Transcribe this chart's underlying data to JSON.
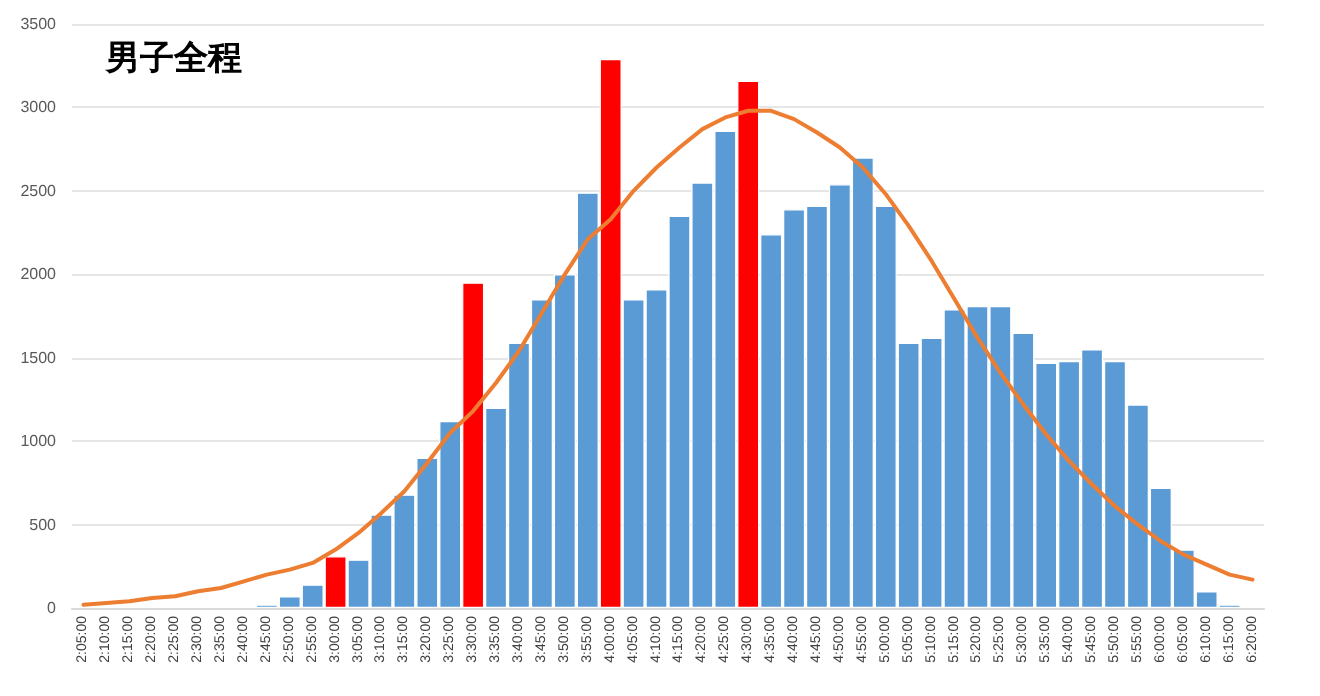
{
  "chart_data": {
    "type": "bar",
    "title": "男子全程",
    "categories": [
      "2:05:00",
      "2:10:00",
      "2:15:00",
      "2:20:00",
      "2:25:00",
      "2:30:00",
      "2:35:00",
      "2:40:00",
      "2:45:00",
      "2:50:00",
      "2:55:00",
      "3:00:00",
      "3:05:00",
      "3:10:00",
      "3:15:00",
      "3:20:00",
      "3:25:00",
      "3:30:00",
      "3:35:00",
      "3:40:00",
      "3:45:00",
      "3:50:00",
      "3:55:00",
      "4:00:00",
      "4:05:00",
      "4:10:00",
      "4:15:00",
      "4:20:00",
      "4:25:00",
      "4:30:00",
      "4:35:00",
      "4:40:00",
      "4:45:00",
      "4:50:00",
      "4:55:00",
      "5:00:00",
      "5:05:00",
      "5:10:00",
      "5:15:00",
      "5:20:00",
      "5:25:00",
      "5:30:00",
      "5:35:00",
      "5:40:00",
      "5:45:00",
      "5:50:00",
      "5:55:00",
      "6:00:00",
      "6:05:00",
      "6:10:00",
      "6:15:00",
      "6:20:00"
    ],
    "series": [
      {
        "values": [
          0,
          0,
          0,
          10,
          0,
          0,
          0,
          10,
          20,
          70,
          140,
          310,
          290,
          560,
          680,
          900,
          1120,
          1950,
          1200,
          1590,
          1850,
          2000,
          2490,
          3290,
          1850,
          1910,
          2350,
          2550,
          2860,
          3160,
          2240,
          2390,
          2410,
          2540,
          2700,
          2410,
          1590,
          1620,
          1790,
          1810,
          1810,
          1650,
          1470,
          1480,
          1550,
          1480,
          1220,
          720,
          350,
          100,
          20,
          0
        ],
        "colors": [
          "#5b9bd5",
          "#5b9bd5",
          "#5b9bd5",
          "#5b9bd5",
          "#5b9bd5",
          "#5b9bd5",
          "#5b9bd5",
          "#5b9bd5",
          "#5b9bd5",
          "#5b9bd5",
          "#5b9bd5",
          "#ff0000",
          "#5b9bd5",
          "#5b9bd5",
          "#5b9bd5",
          "#5b9bd5",
          "#5b9bd5",
          "#ff0000",
          "#5b9bd5",
          "#5b9bd5",
          "#5b9bd5",
          "#5b9bd5",
          "#5b9bd5",
          "#ff0000",
          "#5b9bd5",
          "#5b9bd5",
          "#5b9bd5",
          "#5b9bd5",
          "#5b9bd5",
          "#ff0000",
          "#5b9bd5",
          "#5b9bd5",
          "#5b9bd5",
          "#5b9bd5",
          "#5b9bd5",
          "#5b9bd5",
          "#5b9bd5",
          "#5b9bd5",
          "#5b9bd5",
          "#5b9bd5",
          "#5b9bd5",
          "#5b9bd5",
          "#5b9bd5",
          "#5b9bd5",
          "#5b9bd5",
          "#5b9bd5",
          "#5b9bd5",
          "#5b9bd5",
          "#5b9bd5",
          "#5b9bd5",
          "#5b9bd5",
          "#5b9bd5"
        ]
      },
      {
        "type": "line",
        "color": "#ed7d31",
        "values": [
          20,
          30,
          40,
          60,
          70,
          100,
          120,
          160,
          200,
          230,
          270,
          350,
          450,
          570,
          700,
          870,
          1050,
          1180,
          1350,
          1540,
          1770,
          2000,
          2210,
          2330,
          2500,
          2640,
          2760,
          2870,
          2940,
          2980,
          2980,
          2930,
          2850,
          2760,
          2640,
          2480,
          2290,
          2080,
          1850,
          1620,
          1410,
          1220,
          1040,
          880,
          740,
          610,
          500,
          400,
          320,
          260,
          200,
          170
        ]
      }
    ],
    "ylim": [
      0,
      3500
    ],
    "yticks": [
      0,
      500,
      1000,
      1500,
      2000,
      2500,
      3000,
      3500
    ],
    "grid": "y",
    "marker": "none",
    "line_style": "solid"
  }
}
